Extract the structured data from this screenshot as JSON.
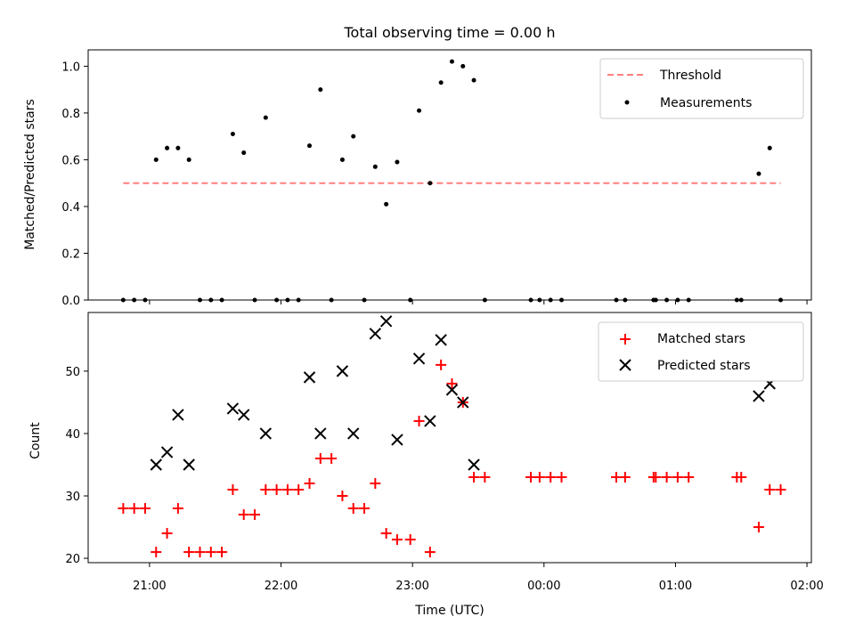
{
  "chart_data": [
    {
      "type": "scatter",
      "title": "Total observing time = 0.00 h",
      "ylabel": "Matched/Predicted stars",
      "xlabel": "",
      "ylim": [
        0,
        1.07
      ],
      "xlim": [
        "20:32",
        "02:02"
      ],
      "x_tick_labels": [
        "21:00",
        "22:00",
        "23:00",
        "00:00",
        "01:00",
        "02:00"
      ],
      "y_ticks": [
        0.0,
        0.2,
        0.4,
        0.6,
        0.8,
        1.0
      ],
      "y_tick_labels": [
        "0.0",
        "0.2",
        "0.4",
        "0.6",
        "0.8",
        "1.0"
      ],
      "legend_position": "upper right",
      "threshold": {
        "name": "Threshold",
        "value": 0.5,
        "x_range": [
          "20:48",
          "01:48"
        ],
        "color": "#ff7f7f",
        "style": "dashed"
      },
      "series": [
        {
          "name": "Measurements",
          "marker": "dot",
          "color": "#000000",
          "points": [
            [
              "20:48",
              0.0
            ],
            [
              "20:53",
              0.0
            ],
            [
              "20:58",
              0.0
            ],
            [
              "21:03",
              0.6
            ],
            [
              "21:08",
              0.65
            ],
            [
              "21:13",
              0.65
            ],
            [
              "21:18",
              0.6
            ],
            [
              "21:23",
              0.0
            ],
            [
              "21:28",
              0.0
            ],
            [
              "21:33",
              0.0
            ],
            [
              "21:38",
              0.71
            ],
            [
              "21:43",
              0.63
            ],
            [
              "21:48",
              0.0
            ],
            [
              "21:53",
              0.78
            ],
            [
              "21:58",
              0.0
            ],
            [
              "22:03",
              0.0
            ],
            [
              "22:08",
              0.0
            ],
            [
              "22:13",
              0.66
            ],
            [
              "22:18",
              0.9
            ],
            [
              "22:23",
              0.0
            ],
            [
              "22:28",
              0.6
            ],
            [
              "22:33",
              0.7
            ],
            [
              "22:38",
              0.0
            ],
            [
              "22:43",
              0.57
            ],
            [
              "22:48",
              0.41
            ],
            [
              "22:53",
              0.59
            ],
            [
              "22:59",
              0.0
            ],
            [
              "23:03",
              0.81
            ],
            [
              "23:08",
              0.5
            ],
            [
              "23:13",
              0.93
            ],
            [
              "23:18",
              1.02
            ],
            [
              "23:23",
              1.0
            ],
            [
              "23:28",
              0.94
            ],
            [
              "23:33",
              0.0
            ],
            [
              "23:54",
              0.0
            ],
            [
              "23:58",
              0.0
            ],
            [
              "00:03",
              0.0
            ],
            [
              "00:08",
              0.0
            ],
            [
              "00:33",
              0.0
            ],
            [
              "00:37",
              0.0
            ],
            [
              "00:50",
              0.0
            ],
            [
              "00:51",
              0.0
            ],
            [
              "00:56",
              0.0
            ],
            [
              "01:01",
              0.0
            ],
            [
              "01:06",
              0.0
            ],
            [
              "01:28",
              0.0
            ],
            [
              "01:30",
              0.0
            ],
            [
              "01:38",
              0.54
            ],
            [
              "01:43",
              0.65
            ],
            [
              "01:48",
              0.0
            ]
          ]
        }
      ]
    },
    {
      "type": "scatter",
      "title": "",
      "xlabel": "Time (UTC)",
      "ylabel": "Count",
      "ylim": [
        19.3,
        59.4
      ],
      "xlim": [
        "20:32",
        "02:02"
      ],
      "x_tick_labels": [
        "21:00",
        "22:00",
        "23:00",
        "00:00",
        "01:00",
        "02:00"
      ],
      "y_ticks": [
        20,
        30,
        40,
        50
      ],
      "y_tick_labels": [
        "20",
        "30",
        "40",
        "50"
      ],
      "legend_position": "upper right",
      "series": [
        {
          "name": "Matched stars",
          "marker": "plus",
          "color": "#ff0000",
          "points": [
            [
              "20:48",
              28
            ],
            [
              "20:53",
              28
            ],
            [
              "20:58",
              28
            ],
            [
              "21:03",
              21
            ],
            [
              "21:08",
              24
            ],
            [
              "21:13",
              28
            ],
            [
              "21:18",
              21
            ],
            [
              "21:23",
              21
            ],
            [
              "21:28",
              21
            ],
            [
              "21:33",
              21
            ],
            [
              "21:38",
              31
            ],
            [
              "21:43",
              27
            ],
            [
              "21:48",
              27
            ],
            [
              "21:53",
              31
            ],
            [
              "21:58",
              31
            ],
            [
              "22:03",
              31
            ],
            [
              "22:08",
              31
            ],
            [
              "22:13",
              32
            ],
            [
              "22:18",
              36
            ],
            [
              "22:23",
              36
            ],
            [
              "22:28",
              30
            ],
            [
              "22:33",
              28
            ],
            [
              "22:38",
              28
            ],
            [
              "22:43",
              32
            ],
            [
              "22:48",
              24
            ],
            [
              "22:53",
              23
            ],
            [
              "22:59",
              23
            ],
            [
              "23:03",
              42
            ],
            [
              "23:08",
              21
            ],
            [
              "23:13",
              51
            ],
            [
              "23:18",
              48
            ],
            [
              "23:23",
              45
            ],
            [
              "23:28",
              33
            ],
            [
              "23:33",
              33
            ],
            [
              "23:54",
              33
            ],
            [
              "23:58",
              33
            ],
            [
              "00:03",
              33
            ],
            [
              "00:08",
              33
            ],
            [
              "00:33",
              33
            ],
            [
              "00:37",
              33
            ],
            [
              "00:50",
              33
            ],
            [
              "00:51",
              33
            ],
            [
              "00:56",
              33
            ],
            [
              "01:01",
              33
            ],
            [
              "01:06",
              33
            ],
            [
              "01:28",
              33
            ],
            [
              "01:30",
              33
            ],
            [
              "01:38",
              25
            ],
            [
              "01:43",
              31
            ],
            [
              "01:48",
              31
            ]
          ]
        },
        {
          "name": "Predicted stars",
          "marker": "x",
          "color": "#000000",
          "points": [
            [
              "21:03",
              35
            ],
            [
              "21:08",
              37
            ],
            [
              "21:13",
              43
            ],
            [
              "21:18",
              35
            ],
            [
              "21:38",
              44
            ],
            [
              "21:43",
              43
            ],
            [
              "21:53",
              40
            ],
            [
              "22:13",
              49
            ],
            [
              "22:18",
              40
            ],
            [
              "22:28",
              50
            ],
            [
              "22:33",
              40
            ],
            [
              "22:43",
              56
            ],
            [
              "22:48",
              58
            ],
            [
              "22:53",
              39
            ],
            [
              "23:03",
              52
            ],
            [
              "23:08",
              42
            ],
            [
              "23:13",
              55
            ],
            [
              "23:18",
              47
            ],
            [
              "23:23",
              45
            ],
            [
              "23:28",
              35
            ],
            [
              "01:38",
              46
            ],
            [
              "01:43",
              48
            ]
          ]
        }
      ]
    }
  ]
}
